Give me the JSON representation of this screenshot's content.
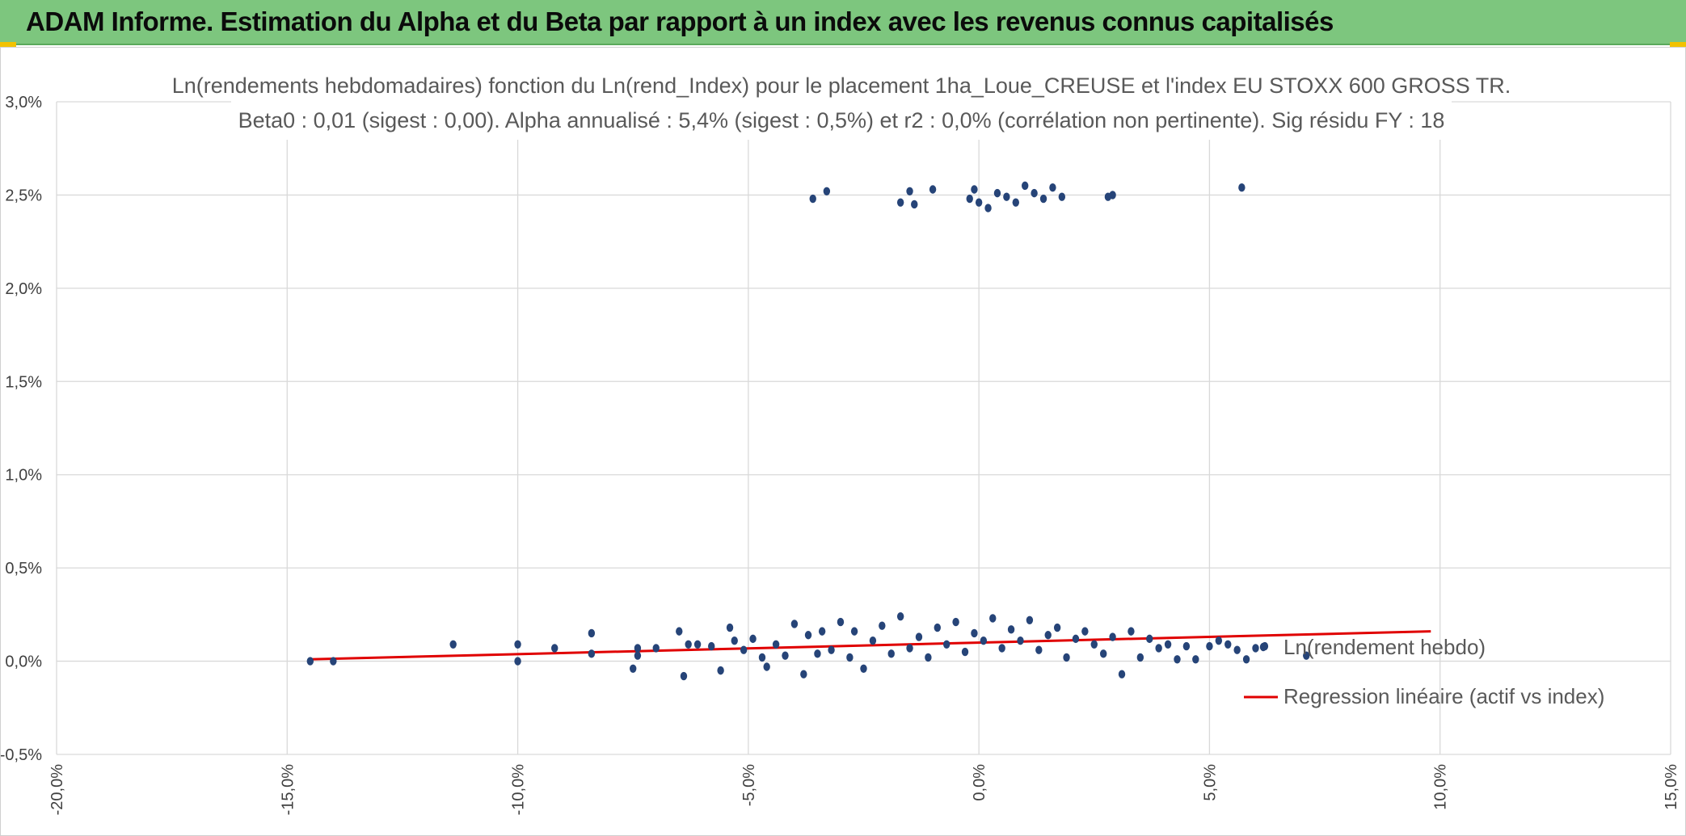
{
  "header": {
    "title": "ADAM Informe. Estimation du Alpha et du Beta par rapport à un index avec les revenus connus capitalisés"
  },
  "colors": {
    "banner": "#7dc67e",
    "points": "#264478",
    "regression": "#e00000",
    "grid": "#d9d9d9"
  },
  "chart_data": {
    "type": "scatter",
    "title": "Ln(rendements hebdomadaires) fonction du Ln(rend_Index) pour le placement 1ha_Loue_CREUSE et l'index EU STOXX 600 GROSS TR.",
    "subtitle": "Beta0 : 0,01 (sigest : 0,00). Alpha annualisé : 5,4% (sigest : 0,5%) et r2 : 0,0% (corrélation non pertinente). Sig résidu FY : 18",
    "xlabel": "",
    "ylabel": "",
    "xlim": [
      -0.2,
      0.15
    ],
    "ylim": [
      -0.005,
      0.03
    ],
    "x_ticks": [
      -0.2,
      -0.15,
      -0.1,
      -0.05,
      0.0,
      0.05,
      0.1,
      0.15
    ],
    "x_tick_labels": [
      "-20,0%",
      "-15,0%",
      "-10,0%",
      "-5,0%",
      "0,0%",
      "5,0%",
      "10,0%",
      "15,0%"
    ],
    "y_ticks": [
      -0.005,
      0.0,
      0.005,
      0.01,
      0.015,
      0.02,
      0.025,
      0.03
    ],
    "y_tick_labels": [
      "-0,5%",
      "0,0%",
      "0,5%",
      "1,0%",
      "1,5%",
      "2,0%",
      "2,5%",
      "3,0%"
    ],
    "grid": true,
    "legend_position": "right",
    "series": [
      {
        "name": "Ln(rendement hebdo)",
        "kind": "scatter",
        "x": [
          -0.145,
          -0.14,
          -0.114,
          -0.1,
          -0.1,
          -0.092,
          -0.084,
          -0.084,
          -0.075,
          -0.074,
          -0.074,
          -0.07,
          -0.065,
          -0.064,
          -0.063,
          -0.061,
          -0.058,
          -0.056,
          -0.054,
          -0.053,
          -0.051,
          -0.049,
          -0.047,
          -0.046,
          -0.044,
          -0.042,
          -0.04,
          -0.038,
          -0.037,
          -0.035,
          -0.034,
          -0.032,
          -0.03,
          -0.028,
          -0.027,
          -0.025,
          -0.023,
          -0.021,
          -0.019,
          -0.017,
          -0.015,
          -0.013,
          -0.011,
          -0.009,
          -0.007,
          -0.005,
          -0.003,
          -0.001,
          0.001,
          0.003,
          0.005,
          0.007,
          0.009,
          0.011,
          0.013,
          0.015,
          0.017,
          0.019,
          0.021,
          0.023,
          0.025,
          0.027,
          0.029,
          0.031,
          0.033,
          0.035,
          0.037,
          0.039,
          0.041,
          0.043,
          0.045,
          0.047,
          0.05,
          0.052,
          0.054,
          0.056,
          0.058,
          0.06,
          0.062,
          0.071,
          -0.036,
          -0.033,
          -0.017,
          -0.015,
          -0.014,
          -0.01,
          -0.002,
          -0.001,
          0.0,
          0.002,
          0.004,
          0.006,
          0.008,
          0.01,
          0.012,
          0.014,
          0.016,
          0.018,
          0.028,
          0.029,
          0.057
        ],
        "y": [
          0.0,
          0.0,
          0.0009,
          0.0009,
          0.0,
          0.0007,
          0.0015,
          0.0004,
          -0.0004,
          0.0007,
          0.0003,
          0.0007,
          0.0016,
          -0.0008,
          0.0009,
          0.0009,
          0.0008,
          -0.0005,
          0.0018,
          0.0011,
          0.0006,
          0.0012,
          0.0002,
          -0.0003,
          0.0009,
          0.0003,
          0.002,
          -0.0007,
          0.0014,
          0.0004,
          0.0016,
          0.0006,
          0.0021,
          0.0002,
          0.0016,
          -0.0004,
          0.0011,
          0.0019,
          0.0004,
          0.0024,
          0.0007,
          0.0013,
          0.0002,
          0.0018,
          0.0009,
          0.0021,
          0.0005,
          0.0015,
          0.0011,
          0.0023,
          0.0007,
          0.0017,
          0.0011,
          0.0022,
          0.0006,
          0.0014,
          0.0018,
          0.0002,
          0.0012,
          0.0016,
          0.0009,
          0.0004,
          0.0013,
          -0.0007,
          0.0016,
          0.0002,
          0.0012,
          0.0007,
          0.0009,
          0.0001,
          0.0008,
          0.0001,
          0.0008,
          0.0011,
          0.0009,
          0.0006,
          0.0001,
          0.0007,
          0.0008,
          0.0003,
          0.0248,
          0.0252,
          0.0246,
          0.0252,
          0.0245,
          0.0253,
          0.0248,
          0.0253,
          0.0246,
          0.0243,
          0.0251,
          0.0249,
          0.0246,
          0.0255,
          0.0251,
          0.0248,
          0.0254,
          0.0249,
          0.0249,
          0.025,
          0.0254
        ]
      },
      {
        "name": "Regression linéaire (actif vs index)",
        "kind": "line",
        "x": [
          -0.145,
          0.098
        ],
        "y": [
          0.0001,
          0.0016
        ]
      }
    ]
  }
}
